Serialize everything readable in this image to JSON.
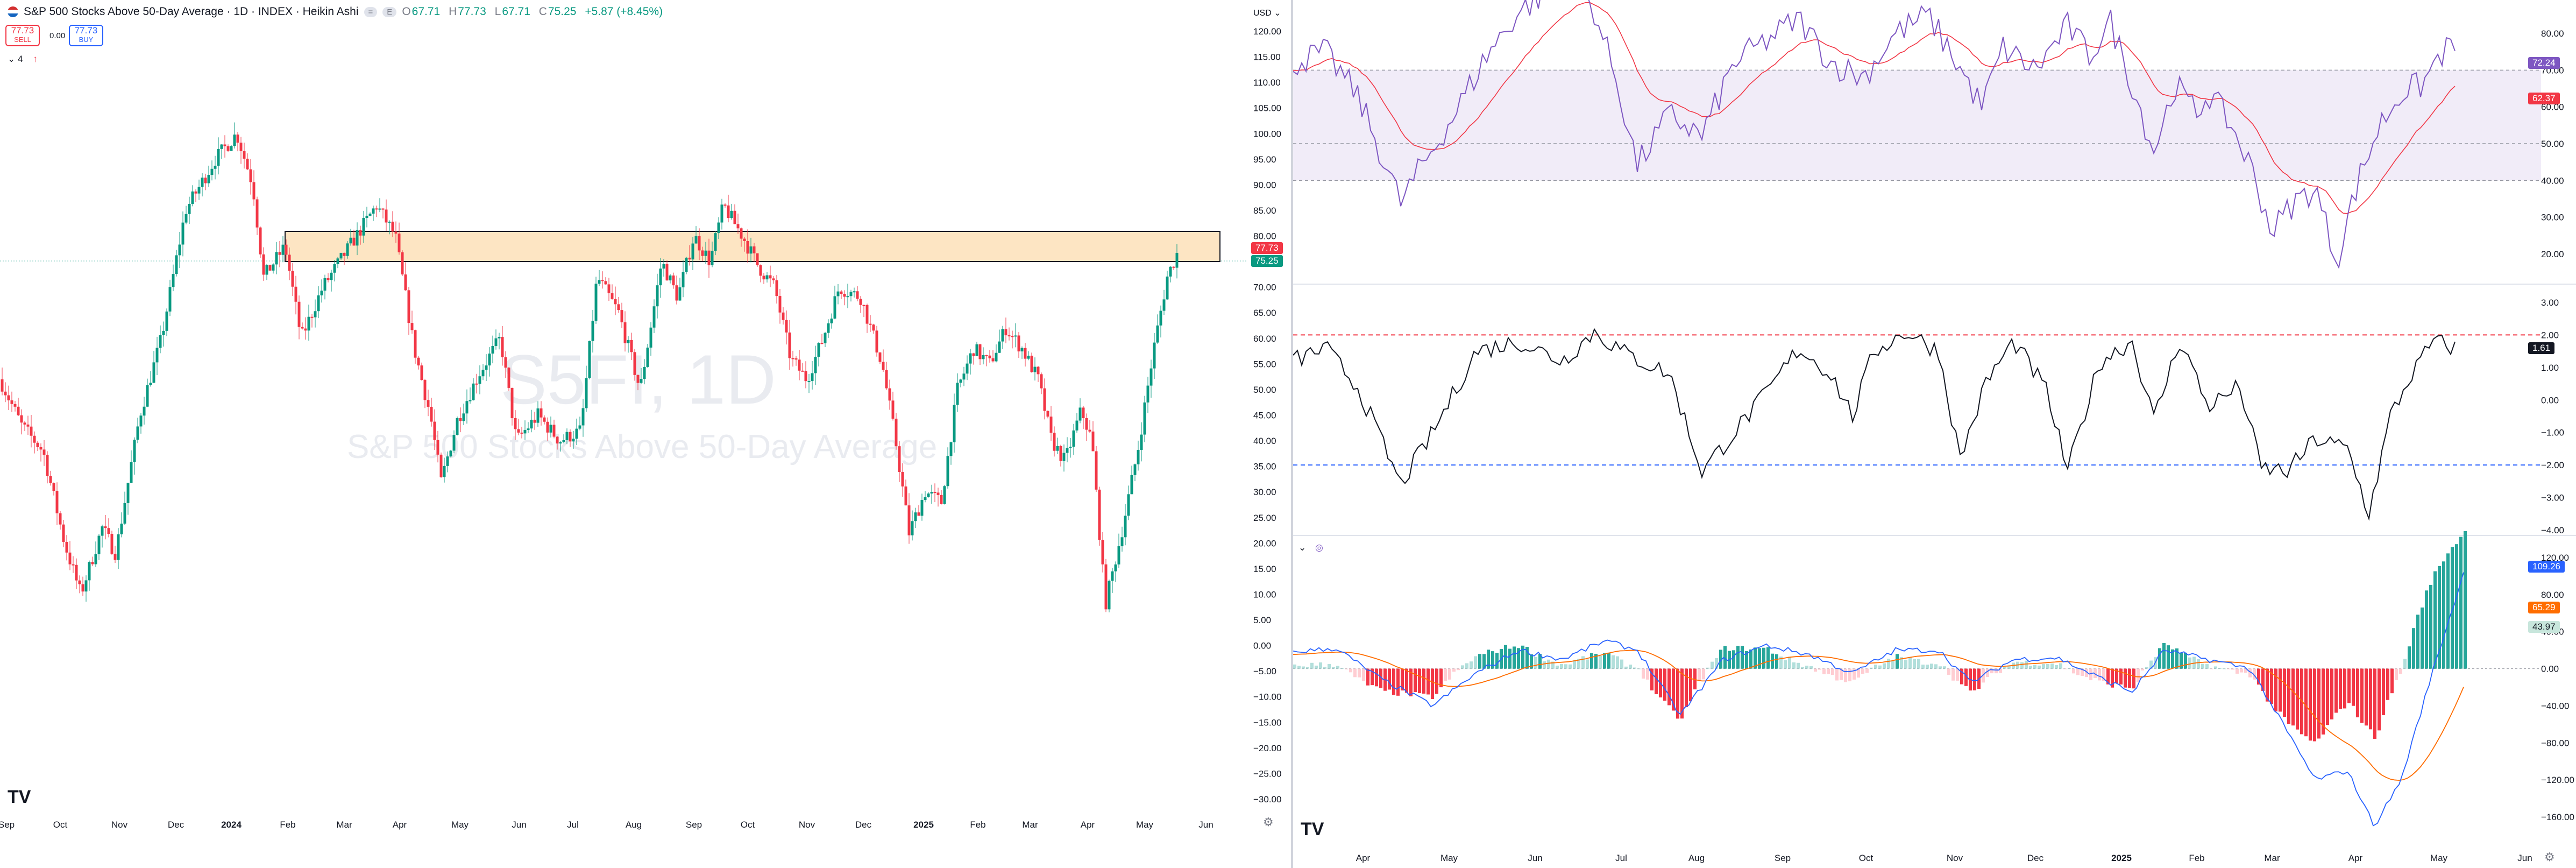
{
  "header": {
    "title": "S&P 500 Stocks Above 50-Day Average · 1D · INDEX · Heikin Ashi",
    "badge1": "=",
    "badge2": "E",
    "ohlc": {
      "o_label": "O",
      "o": "67.71",
      "h_label": "H",
      "h": "77.73",
      "l_label": "L",
      "l": "67.71",
      "c_label": "C",
      "c": "75.25",
      "change": "+5.87 (+8.45%)"
    },
    "indicator_count": "4"
  },
  "trade": {
    "sell_price": "77.73",
    "sell_label": "SELL",
    "spread": "0.00",
    "buy_price": "77.73",
    "buy_label": "BUY"
  },
  "watermark": {
    "symbol": "S5FI, 1D",
    "name": "S&P 500 Stocks Above 50-Day Average"
  },
  "currency": "USD",
  "main_axis": [
    "120.00",
    "115.00",
    "110.00",
    "105.00",
    "100.00",
    "95.00",
    "90.00",
    "85.00",
    "80.00",
    "75.00",
    "70.00",
    "65.00",
    "60.00",
    "55.00",
    "50.00",
    "45.00",
    "40.00",
    "35.00",
    "30.00",
    "25.00",
    "20.00",
    "15.00",
    "10.00",
    "5.00",
    "0.00",
    "−5.00",
    "−10.00",
    "−15.00",
    "−20.00",
    "−25.00",
    "−30.00"
  ],
  "main_tags": {
    "price": "77.73",
    "prev": "75.25",
    "price_color": "#f23645",
    "prev_color": "#089981"
  },
  "main_dates": [
    "Sep",
    "Oct",
    "Nov",
    "Dec",
    "2024",
    "Feb",
    "Mar",
    "Apr",
    "May",
    "Jun",
    "Jul",
    "Aug",
    "Sep",
    "Oct",
    "Nov",
    "Dec",
    "2025",
    "Feb",
    "Mar",
    "Apr",
    "May",
    "Jun"
  ],
  "rsi_axis": [
    "80.00",
    "70.00",
    "60.00",
    "50.00",
    "40.00",
    "30.00",
    "20.00"
  ],
  "rsi_tags": {
    "rsi": "72.24",
    "ma": "62.37",
    "rsi_color": "#7e57c2",
    "ma_color": "#f23645"
  },
  "z_axis": [
    "3.00",
    "2.00",
    "1.00",
    "0.00",
    "−1.00",
    "−2.00",
    "−3.00",
    "−4.00"
  ],
  "z_tag": {
    "value": "1.61"
  },
  "macd_axis": [
    "120.00",
    "80.00",
    "40.00",
    "0.00",
    "−40.00",
    "−80.00",
    "−120.00",
    "−160.00"
  ],
  "macd_tags": {
    "macd": "109.26",
    "signal": "65.29",
    "hist": "43.97",
    "macd_color": "#2962ff",
    "signal_color": "#ff6d00",
    "hist_color": "#a5d6c8"
  },
  "right_dates": [
    "Apr",
    "May",
    "Jun",
    "Jul",
    "Aug",
    "Sep",
    "Oct",
    "Nov",
    "Dec",
    "2025",
    "Feb",
    "Mar",
    "Apr",
    "May",
    "Jun"
  ],
  "logo": "TV"
}
